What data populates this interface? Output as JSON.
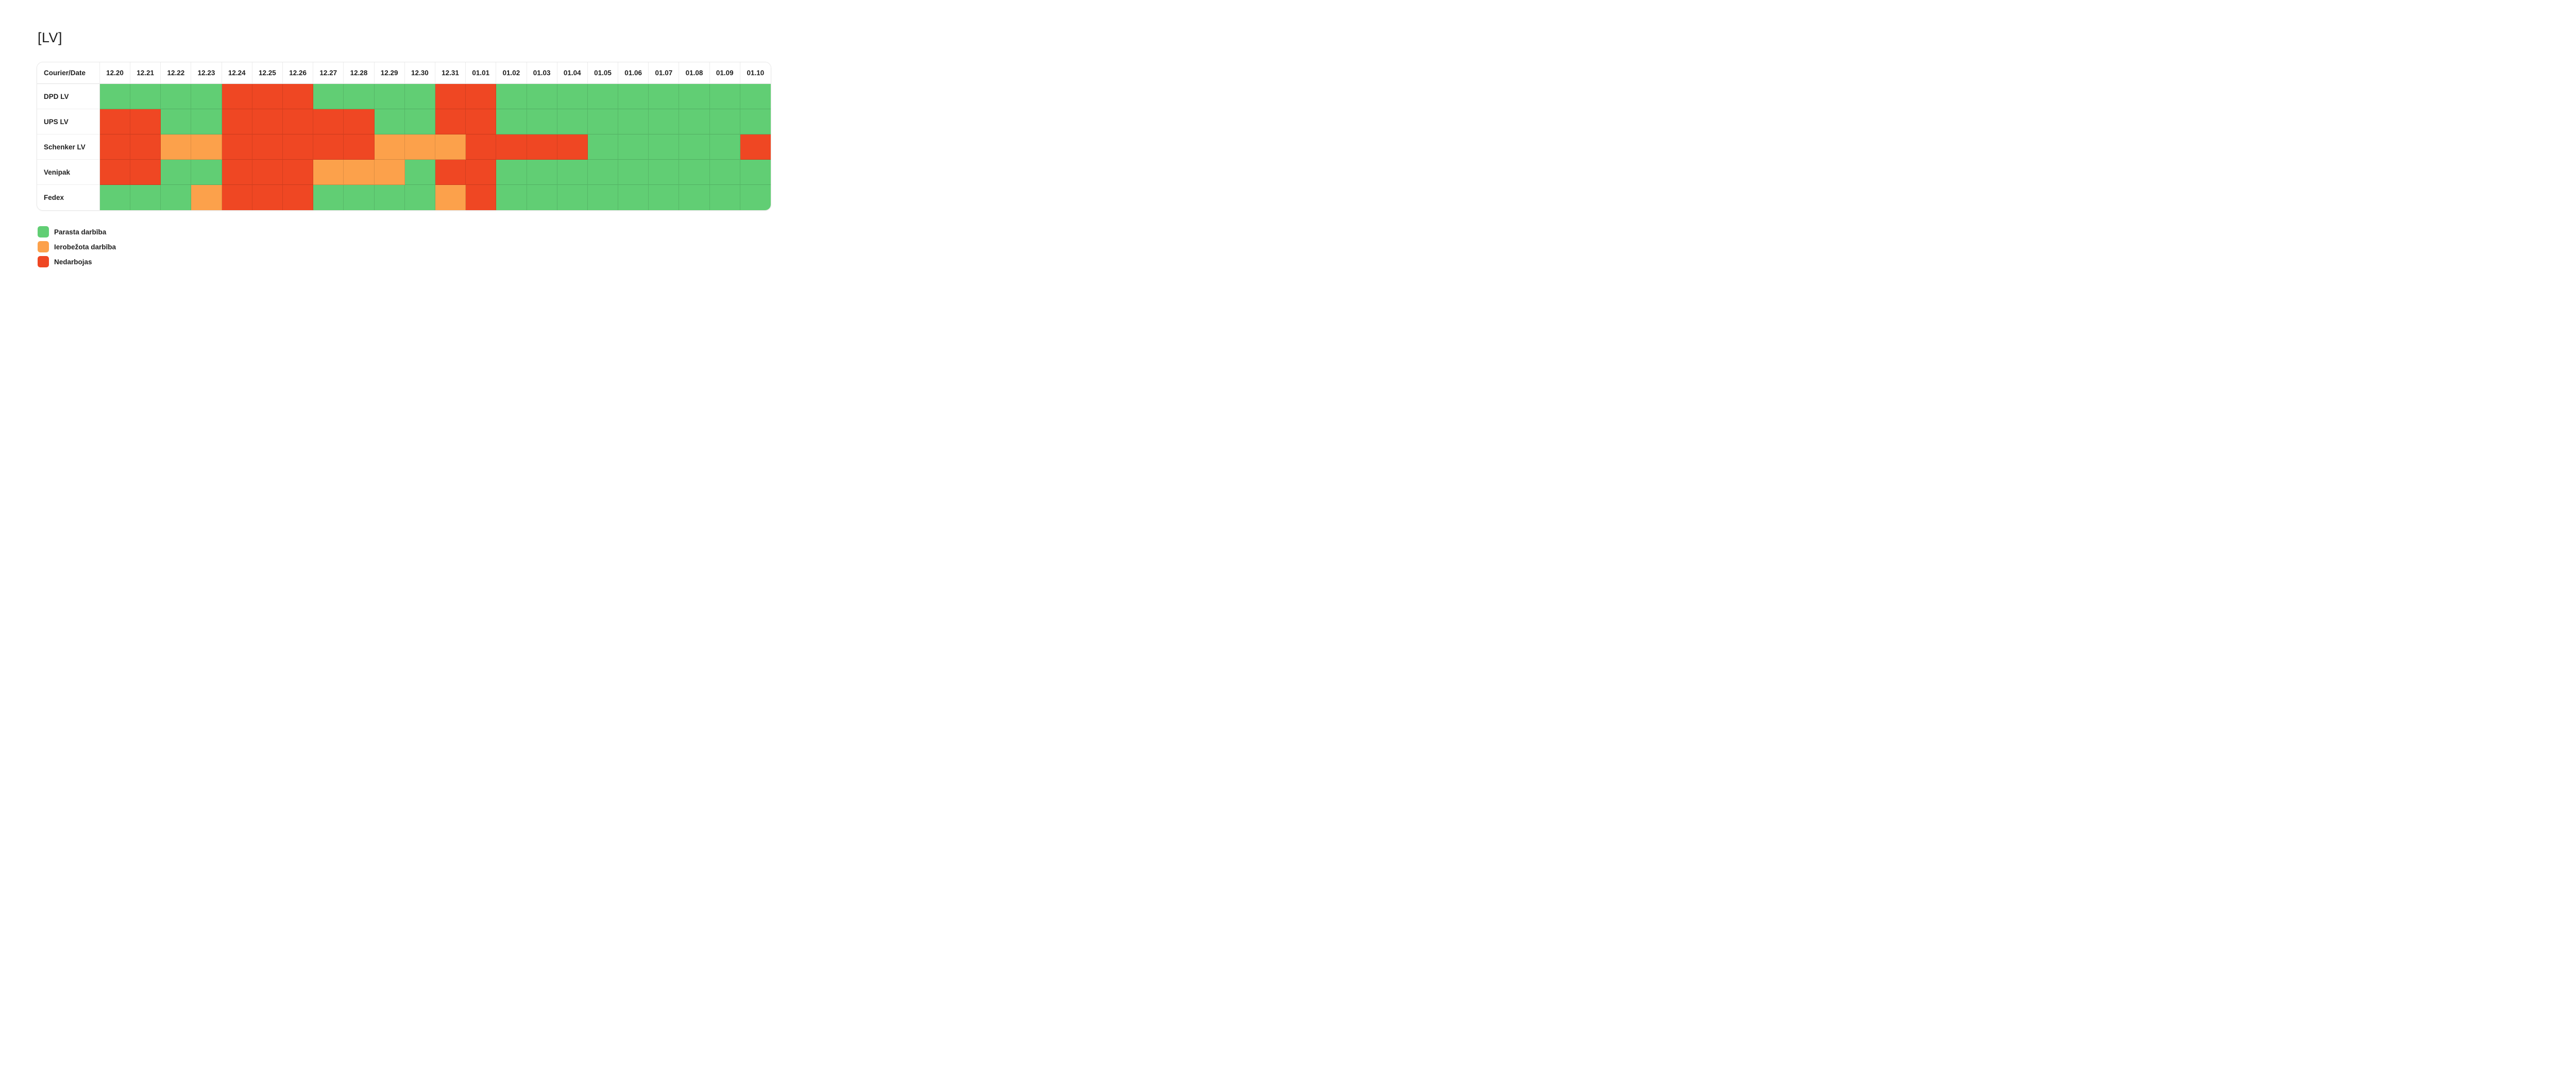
{
  "title": "[LV]",
  "colors": {
    "normal": "#61CE74",
    "limited": "#FCA14B",
    "down": "#EF4723"
  },
  "table": {
    "corner_label": "Courier/Date",
    "dates": [
      "12.20",
      "12.21",
      "12.22",
      "12.23",
      "12.24",
      "12.25",
      "12.26",
      "12.27",
      "12.28",
      "12.29",
      "12.30",
      "12.31",
      "01.01",
      "01.02",
      "01.03",
      "01.04",
      "01.05",
      "01.06",
      "01.07",
      "01.08",
      "01.09",
      "01.10"
    ],
    "rows": [
      {
        "label": "DPD LV",
        "statuses": [
          "normal",
          "normal",
          "normal",
          "normal",
          "down",
          "down",
          "down",
          "normal",
          "normal",
          "normal",
          "normal",
          "down",
          "down",
          "normal",
          "normal",
          "normal",
          "normal",
          "normal",
          "normal",
          "normal",
          "normal",
          "normal"
        ]
      },
      {
        "label": "UPS LV",
        "statuses": [
          "down",
          "down",
          "normal",
          "normal",
          "down",
          "down",
          "down",
          "down",
          "down",
          "normal",
          "normal",
          "down",
          "down",
          "normal",
          "normal",
          "normal",
          "normal",
          "normal",
          "normal",
          "normal",
          "normal",
          "normal"
        ]
      },
      {
        "label": "Schenker LV",
        "statuses": [
          "down",
          "down",
          "limited",
          "limited",
          "down",
          "down",
          "down",
          "down",
          "down",
          "limited",
          "limited",
          "limited",
          "down",
          "down",
          "down",
          "down",
          "normal",
          "normal",
          "normal",
          "normal",
          "normal",
          "down"
        ]
      },
      {
        "label": "Venipak",
        "statuses": [
          "down",
          "down",
          "normal",
          "normal",
          "down",
          "down",
          "down",
          "limited",
          "limited",
          "limited",
          "normal",
          "down",
          "down",
          "normal",
          "normal",
          "normal",
          "normal",
          "normal",
          "normal",
          "normal",
          "normal",
          "normal"
        ]
      },
      {
        "label": "Fedex",
        "statuses": [
          "normal",
          "normal",
          "normal",
          "limited",
          "down",
          "down",
          "down",
          "normal",
          "normal",
          "normal",
          "normal",
          "limited",
          "down",
          "normal",
          "normal",
          "normal",
          "normal",
          "normal",
          "normal",
          "normal",
          "normal",
          "normal"
        ]
      }
    ]
  },
  "legend": [
    {
      "status": "normal",
      "label": "Parasta darbība"
    },
    {
      "status": "limited",
      "label": "Ierobežota darbība"
    },
    {
      "status": "down",
      "label": "Nedarbojas"
    }
  ],
  "chart_data": {
    "type": "heatmap",
    "title": "[LV]",
    "x": [
      "12.20",
      "12.21",
      "12.22",
      "12.23",
      "12.24",
      "12.25",
      "12.26",
      "12.27",
      "12.28",
      "12.29",
      "12.30",
      "12.31",
      "01.01",
      "01.02",
      "01.03",
      "01.04",
      "01.05",
      "01.06",
      "01.07",
      "01.08",
      "01.09",
      "01.10"
    ],
    "y": [
      "DPD LV",
      "UPS LV",
      "Schenker LV",
      "Venipak",
      "Fedex"
    ],
    "legend": {
      "normal": "Parasta darbība",
      "limited": "Ierobežota darbība",
      "down": "Nedarbojas"
    },
    "legend_position": "bottom-left",
    "values": [
      [
        "normal",
        "normal",
        "normal",
        "normal",
        "down",
        "down",
        "down",
        "normal",
        "normal",
        "normal",
        "normal",
        "down",
        "down",
        "normal",
        "normal",
        "normal",
        "normal",
        "normal",
        "normal",
        "normal",
        "normal",
        "normal"
      ],
      [
        "down",
        "down",
        "normal",
        "normal",
        "down",
        "down",
        "down",
        "down",
        "down",
        "normal",
        "normal",
        "down",
        "down",
        "normal",
        "normal",
        "normal",
        "normal",
        "normal",
        "normal",
        "normal",
        "normal",
        "normal"
      ],
      [
        "down",
        "down",
        "limited",
        "limited",
        "down",
        "down",
        "down",
        "down",
        "down",
        "limited",
        "limited",
        "limited",
        "down",
        "down",
        "down",
        "down",
        "normal",
        "normal",
        "normal",
        "normal",
        "normal",
        "down"
      ],
      [
        "down",
        "down",
        "normal",
        "normal",
        "down",
        "down",
        "down",
        "limited",
        "limited",
        "limited",
        "normal",
        "down",
        "down",
        "normal",
        "normal",
        "normal",
        "normal",
        "normal",
        "normal",
        "normal",
        "normal",
        "normal"
      ],
      [
        "normal",
        "normal",
        "normal",
        "limited",
        "down",
        "down",
        "down",
        "normal",
        "normal",
        "normal",
        "normal",
        "limited",
        "down",
        "normal",
        "normal",
        "normal",
        "normal",
        "normal",
        "normal",
        "normal",
        "normal",
        "normal"
      ]
    ]
  }
}
